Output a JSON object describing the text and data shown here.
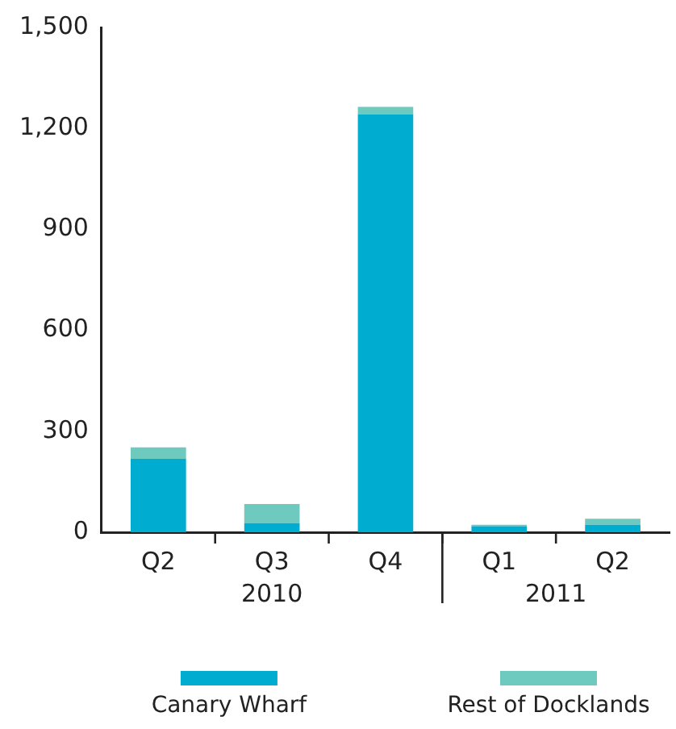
{
  "chart_data": {
    "type": "bar",
    "stacked": true,
    "categories": [
      "Q2",
      "Q3",
      "Q4",
      "Q1",
      "Q2"
    ],
    "series": [
      {
        "name": "Canary Wharf",
        "color": "#00acd0",
        "values": [
          218,
          27,
          1242,
          18,
          22
        ]
      },
      {
        "name": "Rest of Docklands",
        "color": "#6ec9bf",
        "values": [
          34,
          57,
          22,
          4,
          18
        ]
      }
    ],
    "ylim": [
      0,
      1500
    ],
    "yticks": [
      0,
      300,
      600,
      900,
      {
        "value": 1200,
        "label": "1,200"
      },
      {
        "value": 1500,
        "label": "1,500"
      }
    ],
    "grid": false,
    "legend": "bottom",
    "annotations": [
      "2010",
      "2011"
    ]
  }
}
